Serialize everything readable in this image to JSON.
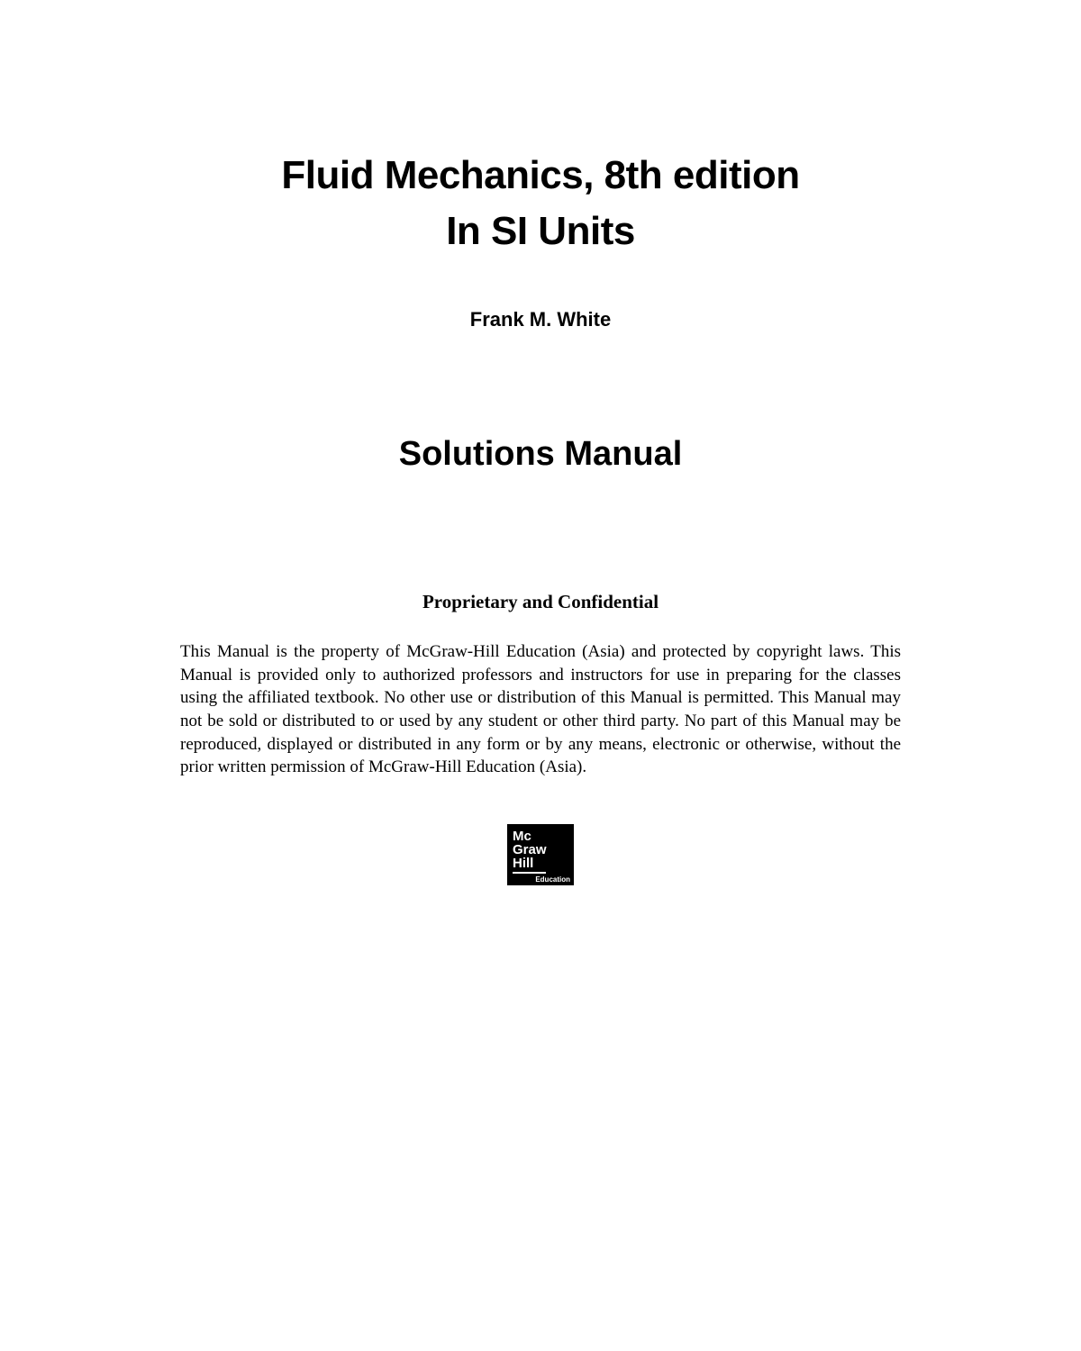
{
  "title": {
    "line1": "Fluid Mechanics, 8th edition",
    "line2": "In SI Units"
  },
  "author": "Frank M. White",
  "subtitle": "Solutions Manual",
  "notice": {
    "heading": "Proprietary and Confidential",
    "body": "This Manual is the property of McGraw-Hill Education (Asia) and protected by copyright laws. This Manual is provided only to authorized professors and instructors for use in preparing for the classes using the affiliated textbook. No other use or distribution of this Manual is permitted. This Manual may not be sold or distributed to or used by any student or other third party. No part of this Manual may be reproduced, displayed or distributed in any form or by any means, electronic or otherwise, without the prior written permission of McGraw-Hill Education (Asia)."
  },
  "logo": {
    "line1": "Mc",
    "line2": "Graw",
    "line3": "Hill",
    "tagline": "Education"
  }
}
